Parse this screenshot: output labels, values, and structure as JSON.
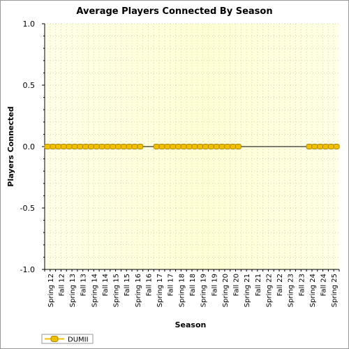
{
  "chart_data": {
    "type": "line",
    "title": "Average Players Connected By Season",
    "xlabel": "Season",
    "ylabel": "Players Connected",
    "ylim": [
      -1.0,
      1.0
    ],
    "yticks": [
      "1.0",
      "0.5",
      "0.0",
      "-0.5",
      "-1.0"
    ],
    "categories": [
      "Spring 12",
      "Fall 12",
      "Spring 13",
      "Fall 13",
      "Spring 14",
      "Fall 14",
      "Spring 15",
      "Fall 15",
      "Spring 16",
      "Fall 16",
      "Spring 17",
      "Fall 17",
      "Spring 18",
      "Fall 18",
      "Spring 19",
      "Fall 19",
      "Spring 20",
      "Fall 20",
      "Spring 21",
      "Fall 21",
      "Spring 22",
      "Fall 22",
      "Spring 23",
      "Fall 23",
      "Spring 24",
      "Fall 24",
      "Spring 25"
    ],
    "series": [
      {
        "name": "DUMII",
        "color": "#f0c000",
        "points": [
          {
            "x": "Spring 12",
            "y": 0
          },
          {
            "x": "Spring 12",
            "y": 0
          },
          {
            "x": "Fall 12",
            "y": 0
          },
          {
            "x": "Fall 12",
            "y": 0
          },
          {
            "x": "Spring 13",
            "y": 0
          },
          {
            "x": "Spring 13",
            "y": 0
          },
          {
            "x": "Fall 13",
            "y": 0
          },
          {
            "x": "Fall 13",
            "y": 0
          },
          {
            "x": "Spring 14",
            "y": 0
          },
          {
            "x": "Spring 14",
            "y": 0
          },
          {
            "x": "Fall 14",
            "y": 0
          },
          {
            "x": "Fall 14",
            "y": 0
          },
          {
            "x": "Spring 15",
            "y": 0
          },
          {
            "x": "Spring 15",
            "y": 0
          },
          {
            "x": "Fall 15",
            "y": 0
          },
          {
            "x": "Fall 15",
            "y": 0
          },
          {
            "x": "Spring 16",
            "y": 0
          },
          {
            "x": "Spring 16",
            "y": 0
          },
          {
            "x": "Spring 17",
            "y": 0
          },
          {
            "x": "Spring 17",
            "y": 0
          },
          {
            "x": "Fall 17",
            "y": 0
          },
          {
            "x": "Fall 17",
            "y": 0
          },
          {
            "x": "Spring 18",
            "y": 0
          },
          {
            "x": "Spring 18",
            "y": 0
          },
          {
            "x": "Fall 18",
            "y": 0
          },
          {
            "x": "Fall 18",
            "y": 0
          },
          {
            "x": "Spring 19",
            "y": 0
          },
          {
            "x": "Spring 19",
            "y": 0
          },
          {
            "x": "Fall 19",
            "y": 0
          },
          {
            "x": "Fall 19",
            "y": 0
          },
          {
            "x": "Spring 20",
            "y": 0
          },
          {
            "x": "Spring 20",
            "y": 0
          },
          {
            "x": "Fall 20",
            "y": 0
          },
          {
            "x": "Fall 20",
            "y": 0
          },
          {
            "x": "Spring 24",
            "y": 0
          },
          {
            "x": "Spring 24",
            "y": 0
          },
          {
            "x": "Fall 24",
            "y": 0
          },
          {
            "x": "Fall 24",
            "y": 0
          },
          {
            "x": "Spring 25",
            "y": 0
          },
          {
            "x": "Spring 25",
            "y": 0
          }
        ]
      }
    ],
    "grid": true,
    "legend": "bottom-left"
  },
  "colors": {
    "plot_bg_top": "#fffff0",
    "plot_bg_mid": "#ffffcc",
    "plot_bg_bottom": "#ffffe0",
    "marker_fill": "#f0c000",
    "marker_stroke": "#b08800"
  }
}
